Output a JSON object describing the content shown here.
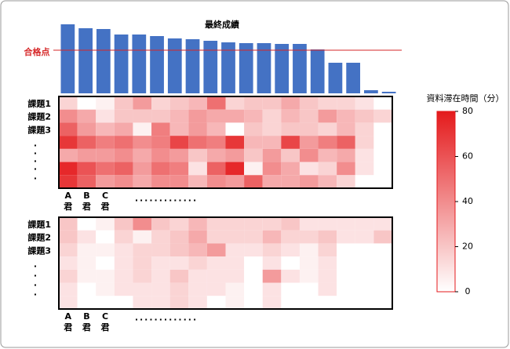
{
  "chart_data": [
    {
      "type": "bar",
      "title": "最終成績",
      "values": [
        88,
        83,
        82,
        75,
        75,
        73,
        70,
        69,
        67,
        65,
        64,
        64,
        63,
        63,
        56,
        39,
        39,
        4,
        2
      ],
      "ylim": [
        0,
        90
      ],
      "color": "#4472c4",
      "reference_line": {
        "label": "合格点",
        "value": 55,
        "color": "#d62728"
      }
    },
    {
      "type": "heatmap",
      "row_labels": [
        "課題1",
        "課題2",
        "課題3",
        null,
        null,
        null,
        null
      ],
      "column_labels": [
        "A君",
        "B君",
        "C君",
        null,
        null,
        null,
        null,
        null,
        null,
        null,
        null,
        null,
        null,
        null,
        null,
        null,
        null,
        null
      ],
      "values": [
        [
          15,
          0,
          5,
          20,
          35,
          15,
          20,
          25,
          50,
          15,
          20,
          20,
          30,
          20,
          15,
          15,
          10,
          0
        ],
        [
          40,
          30,
          10,
          20,
          20,
          20,
          25,
          35,
          30,
          30,
          25,
          15,
          25,
          20,
          35,
          25,
          20,
          15
        ],
        [
          55,
          35,
          25,
          30,
          5,
          45,
          25,
          35,
          25,
          0,
          20,
          15,
          20,
          20,
          15,
          25,
          15,
          0
        ],
        [
          70,
          55,
          45,
          50,
          40,
          45,
          65,
          50,
          45,
          70,
          25,
          25,
          65,
          35,
          45,
          55,
          15,
          0
        ],
        [
          30,
          35,
          35,
          40,
          30,
          40,
          35,
          20,
          30,
          35,
          20,
          35,
          20,
          40,
          25,
          30,
          10,
          0
        ],
        [
          75,
          60,
          50,
          55,
          35,
          50,
          45,
          10,
          55,
          75,
          5,
          40,
          30,
          10,
          15,
          40,
          10,
          0
        ],
        [
          70,
          55,
          35,
          40,
          30,
          40,
          40,
          25,
          40,
          35,
          55,
          30,
          30,
          35,
          25,
          15,
          0,
          0
        ]
      ]
    },
    {
      "type": "heatmap",
      "row_labels": [
        "課題1",
        "課題2",
        "課題3",
        null,
        null,
        null,
        null
      ],
      "column_labels": [
        "A君",
        "B君",
        "C君",
        null,
        null,
        null,
        null,
        null,
        null,
        null,
        null,
        null,
        null,
        null,
        null,
        null,
        null,
        null
      ],
      "values": [
        [
          20,
          0,
          5,
          20,
          40,
          20,
          15,
          25,
          15,
          15,
          15,
          15,
          20,
          10,
          10,
          10,
          10,
          10
        ],
        [
          20,
          10,
          0,
          15,
          5,
          15,
          20,
          30,
          15,
          15,
          15,
          25,
          15,
          15,
          20,
          10,
          10,
          20
        ],
        [
          15,
          5,
          5,
          10,
          15,
          15,
          20,
          25,
          35,
          10,
          10,
          15,
          10,
          5,
          15,
          0,
          0,
          0
        ],
        [
          10,
          5,
          0,
          10,
          15,
          10,
          10,
          15,
          10,
          10,
          0,
          10,
          0,
          5,
          10,
          0,
          0,
          0
        ],
        [
          15,
          5,
          5,
          10,
          15,
          10,
          20,
          10,
          10,
          10,
          0,
          35,
          10,
          5,
          10,
          0,
          0,
          0
        ],
        [
          10,
          0,
          5,
          10,
          10,
          10,
          15,
          10,
          10,
          5,
          0,
          10,
          0,
          0,
          10,
          0,
          0,
          0
        ],
        [
          10,
          0,
          0,
          0,
          10,
          10,
          15,
          10,
          0,
          5,
          0,
          10,
          0,
          0,
          0,
          0,
          0,
          0
        ]
      ]
    },
    {
      "type": "colorbar",
      "title": "資料滞在時間（分）",
      "clim": [
        0,
        80
      ],
      "ticks": [
        0,
        20,
        40,
        60,
        80
      ],
      "colors": [
        "#ffffff",
        "#e41a1c"
      ]
    }
  ]
}
